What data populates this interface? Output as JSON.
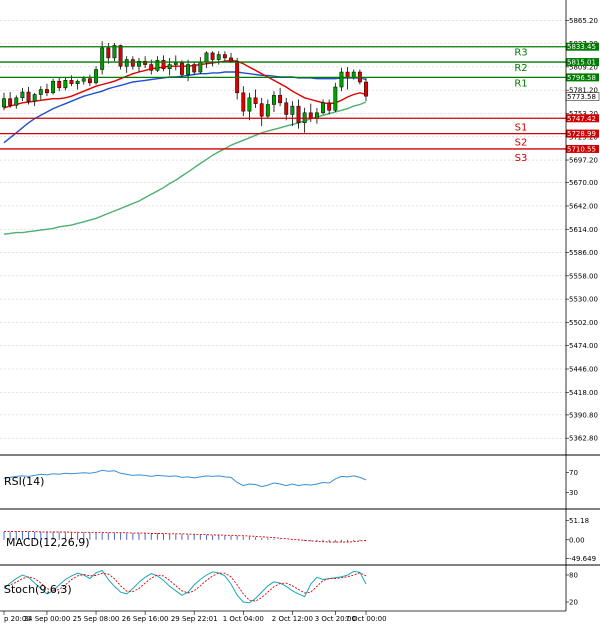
{
  "colors": {
    "grid": "#c8c8c8",
    "bull": "#00a000",
    "bear": "#e00000",
    "candle_line": "#000000",
    "ma_red": "#e00000",
    "ma_blue": "#2050d0",
    "ma_green": "#4cb070",
    "resistance": "#007a00",
    "support": "#d00000",
    "rsi_line": "#3a8fd8",
    "macd_hist": "#4a64c8",
    "macd_signal": "#e00000",
    "stoch_main": "#18a8b8",
    "stoch_signal": "#e00000"
  },
  "chart_data": [
    {
      "type": "candlestick",
      "ylim": [
        5345,
        5880
      ],
      "x_tick_labels": [
        "p 20:00",
        "24 Sep 00:00",
        "25 Sep 08:00",
        "26 Sep 16:00",
        "29 Sep 22:01",
        "1 Oct 04:00",
        "2 Oct 12:00",
        "3 Oct 20:00",
        "7 Oct 00:00"
      ],
      "y_tick_labels": [
        "5865.20",
        "5837.30",
        "5809.20",
        "5781.20",
        "5753.20",
        "5725.20",
        "5697.20",
        "5670.00",
        "5642.00",
        "5614.00",
        "5586.00",
        "5558.00",
        "5530.00",
        "5502.00",
        "5474.00",
        "5446.00",
        "5418.00",
        "5390.80",
        "5362.80"
      ],
      "y_tick_values": [
        5865.2,
        5837.3,
        5809.2,
        5781.2,
        5753.2,
        5725.2,
        5697.2,
        5670.0,
        5642.0,
        5614.0,
        5586.0,
        5558.0,
        5530.0,
        5502.0,
        5474.0,
        5446.0,
        5418.0,
        5390.8,
        5362.8
      ],
      "current_price": 5773.58,
      "levels": [
        {
          "name": "R3",
          "value": 5833.45,
          "kind": "resistance"
        },
        {
          "name": "R2",
          "value": 5815.01,
          "kind": "resistance"
        },
        {
          "name": "R1",
          "value": 5796.58,
          "kind": "resistance"
        },
        {
          "name": "S1",
          "value": 5747.42,
          "kind": "support"
        },
        {
          "name": "S2",
          "value": 5728.99,
          "kind": "support"
        },
        {
          "name": "S3",
          "value": 5710.55,
          "kind": "support"
        }
      ],
      "candles": [
        [
          5761,
          5778,
          5757,
          5771
        ],
        [
          5771,
          5779,
          5760,
          5763
        ],
        [
          5763,
          5775,
          5759,
          5772
        ],
        [
          5772,
          5784,
          5768,
          5779
        ],
        [
          5779,
          5785,
          5764,
          5768
        ],
        [
          5768,
          5778,
          5762,
          5776
        ],
        [
          5776,
          5786,
          5770,
          5782
        ],
        [
          5782,
          5789,
          5774,
          5778
        ],
        [
          5778,
          5795,
          5776,
          5792
        ],
        [
          5792,
          5797,
          5780,
          5784
        ],
        [
          5784,
          5796,
          5781,
          5793
        ],
        [
          5793,
          5799,
          5786,
          5789
        ],
        [
          5789,
          5794,
          5782,
          5792
        ],
        [
          5792,
          5798,
          5788,
          5795
        ],
        [
          5795,
          5800,
          5786,
          5790
        ],
        [
          5790,
          5810,
          5788,
          5806
        ],
        [
          5806,
          5840,
          5800,
          5832
        ],
        [
          5832,
          5838,
          5813,
          5820
        ],
        [
          5820,
          5838,
          5816,
          5835
        ],
        [
          5835,
          5836,
          5806,
          5810
        ],
        [
          5810,
          5822,
          5802,
          5818
        ],
        [
          5818,
          5822,
          5806,
          5810
        ],
        [
          5810,
          5820,
          5803,
          5816
        ],
        [
          5816,
          5822,
          5808,
          5812
        ],
        [
          5812,
          5818,
          5800,
          5805
        ],
        [
          5805,
          5822,
          5803,
          5817
        ],
        [
          5817,
          5823,
          5804,
          5807
        ],
        [
          5807,
          5820,
          5799,
          5812
        ],
        [
          5812,
          5823,
          5805,
          5814
        ],
        [
          5814,
          5817,
          5796,
          5800
        ],
        [
          5800,
          5818,
          5792,
          5812
        ],
        [
          5812,
          5815,
          5800,
          5803
        ],
        [
          5803,
          5821,
          5801,
          5815
        ],
        [
          5815,
          5828,
          5808,
          5826
        ],
        [
          5826,
          5828,
          5810,
          5818
        ],
        [
          5818,
          5828,
          5812,
          5824
        ],
        [
          5824,
          5828,
          5815,
          5820
        ],
        [
          5820,
          5826,
          5814,
          5816
        ],
        [
          5816,
          5820,
          5770,
          5778
        ],
        [
          5778,
          5786,
          5750,
          5756
        ],
        [
          5756,
          5778,
          5745,
          5772
        ],
        [
          5772,
          5782,
          5760,
          5765
        ],
        [
          5765,
          5772,
          5738,
          5750
        ],
        [
          5750,
          5770,
          5748,
          5764
        ],
        [
          5764,
          5780,
          5755,
          5775
        ],
        [
          5775,
          5784,
          5762,
          5766
        ],
        [
          5766,
          5772,
          5745,
          5752
        ],
        [
          5752,
          5768,
          5738,
          5762
        ],
        [
          5762,
          5770,
          5735,
          5742
        ],
        [
          5742,
          5760,
          5730,
          5754
        ],
        [
          5754,
          5765,
          5743,
          5747
        ],
        [
          5747,
          5760,
          5741,
          5754
        ],
        [
          5754,
          5770,
          5752,
          5766
        ],
        [
          5766,
          5770,
          5752,
          5757
        ],
        [
          5757,
          5790,
          5755,
          5785
        ],
        [
          5785,
          5808,
          5780,
          5803
        ],
        [
          5803,
          5809,
          5782,
          5796
        ],
        [
          5796,
          5806,
          5794,
          5803
        ],
        [
          5803,
          5806,
          5788,
          5791
        ],
        [
          5791,
          5796,
          5768,
          5774
        ]
      ],
      "ma_red": [
        5760,
        5762,
        5764,
        5766,
        5767,
        5768,
        5769,
        5770,
        5771,
        5771,
        5772,
        5774,
        5777,
        5780,
        5783,
        5786,
        5788,
        5790,
        5792,
        5795,
        5798,
        5801,
        5803,
        5805,
        5807,
        5808,
        5809,
        5810,
        5810,
        5810,
        5810,
        5811,
        5812,
        5813,
        5814,
        5815,
        5816,
        5817,
        5816,
        5813,
        5809,
        5805,
        5801,
        5797,
        5793,
        5789,
        5785,
        5780,
        5776,
        5772,
        5770,
        5768,
        5766,
        5765,
        5766,
        5769,
        5773,
        5776,
        5778,
        5776
      ],
      "ma_blue": [
        5718,
        5724,
        5730,
        5736,
        5742,
        5747,
        5751,
        5755,
        5759,
        5762,
        5765,
        5768,
        5771,
        5774,
        5776,
        5778,
        5780,
        5783,
        5785,
        5787,
        5789,
        5791,
        5792,
        5793,
        5794,
        5795,
        5796,
        5797,
        5797,
        5798,
        5799,
        5800,
        5801,
        5801,
        5802,
        5802,
        5803,
        5803,
        5803,
        5802,
        5801,
        5800,
        5799,
        5799,
        5798,
        5797,
        5797,
        5797,
        5796,
        5796,
        5796,
        5795,
        5795,
        5795,
        5795,
        5796,
        5796,
        5796,
        5796,
        5794
      ],
      "ma_green": [
        5608,
        5609,
        5610,
        5610,
        5611,
        5612,
        5613,
        5614,
        5615,
        5617,
        5618,
        5619,
        5621,
        5623,
        5625,
        5627,
        5630,
        5633,
        5636,
        5639,
        5642,
        5645,
        5648,
        5652,
        5656,
        5660,
        5664,
        5669,
        5673,
        5678,
        5683,
        5688,
        5693,
        5698,
        5703,
        5707,
        5711,
        5715,
        5718,
        5721,
        5724,
        5727,
        5730,
        5732,
        5734,
        5736,
        5738,
        5740,
        5742,
        5744,
        5747,
        5749,
        5751,
        5753,
        5755,
        5757,
        5759,
        5762,
        5764,
        5767
      ]
    },
    {
      "type": "line",
      "title": "RSI(14)",
      "y_tick_labels": [
        "70",
        "30"
      ],
      "y_tick_values": [
        70,
        30
      ],
      "ylim": [
        0,
        100
      ],
      "values": [
        58,
        60,
        62,
        63,
        62,
        64,
        66,
        65,
        67,
        66,
        68,
        67,
        68,
        69,
        68,
        70,
        74,
        72,
        73,
        68,
        66,
        64,
        65,
        64,
        62,
        64,
        63,
        62,
        63,
        60,
        61,
        59,
        61,
        63,
        62,
        63,
        61,
        60,
        50,
        44,
        47,
        46,
        42,
        45,
        49,
        47,
        44,
        47,
        44,
        46,
        45,
        47,
        50,
        49,
        57,
        62,
        61,
        63,
        60,
        55
      ]
    },
    {
      "type": "bar",
      "title": "MACD(12,26,9)",
      "y_tick_labels": [
        "51.18",
        "0.00",
        "-49.649"
      ],
      "y_tick_values": [
        51.18,
        0,
        -49.649
      ],
      "ylim": [
        -65,
        80
      ],
      "values": [
        22,
        22,
        22,
        22,
        22,
        21,
        21,
        21,
        21,
        20,
        20,
        20,
        20,
        20,
        20,
        19,
        19,
        19,
        19,
        19,
        18,
        18,
        18,
        17,
        17,
        17,
        16,
        16,
        15,
        15,
        14,
        14,
        13,
        13,
        12,
        12,
        11,
        11,
        10,
        9,
        8,
        7,
        5,
        4,
        3,
        1,
        0,
        -1,
        -2,
        -3,
        -4,
        -5,
        -6,
        -6,
        -7,
        -6,
        -5,
        -4,
        -2,
        0
      ],
      "signal": [
        22,
        22,
        22,
        22,
        22,
        22,
        21,
        21,
        21,
        21,
        21,
        20,
        20,
        20,
        20,
        20,
        20,
        19,
        19,
        19,
        19,
        18,
        18,
        18,
        17,
        17,
        17,
        16,
        16,
        16,
        15,
        15,
        14,
        14,
        13,
        13,
        12,
        12,
        11,
        11,
        10,
        9,
        8,
        7,
        6,
        4,
        3,
        1,
        0,
        -2,
        -3,
        -4,
        -5,
        -6,
        -6,
        -6,
        -6,
        -5,
        -3,
        -2
      ]
    },
    {
      "type": "line",
      "title": "Stoch(9,6,3)",
      "y_tick_labels": [
        "80",
        "20"
      ],
      "y_tick_values": [
        80,
        20
      ],
      "ylim": [
        0,
        100
      ],
      "series": [
        {
          "name": "main",
          "values": [
            50,
            62,
            72,
            80,
            75,
            62,
            50,
            38,
            45,
            58,
            70,
            78,
            84,
            80,
            72,
            85,
            90,
            70,
            55,
            42,
            38,
            50,
            64,
            75,
            83,
            78,
            68,
            55,
            45,
            35,
            42,
            58,
            70,
            80,
            87,
            85,
            78,
            60,
            35,
            20,
            18,
            28,
            42,
            56,
            65,
            62,
            55,
            45,
            38,
            32,
            60,
            75,
            70,
            72,
            74,
            76,
            80,
            88,
            86,
            60
          ]
        },
        {
          "name": "signal",
          "values": [
            55,
            58,
            64,
            72,
            76,
            72,
            62,
            50,
            44,
            48,
            58,
            70,
            78,
            81,
            78,
            79,
            84,
            82,
            72,
            56,
            44,
            43,
            50,
            62,
            73,
            80,
            78,
            68,
            56,
            45,
            40,
            45,
            56,
            68,
            78,
            84,
            84,
            76,
            58,
            38,
            24,
            22,
            30,
            42,
            54,
            61,
            62,
            56,
            48,
            40,
            42,
            55,
            68,
            72,
            72,
            74,
            76,
            80,
            85,
            78
          ]
        }
      ]
    }
  ]
}
